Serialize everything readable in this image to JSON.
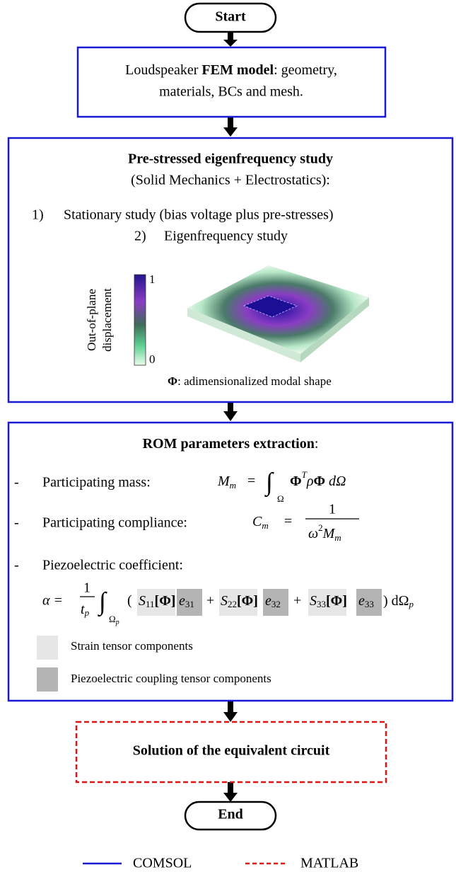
{
  "start": {
    "label": "Start"
  },
  "fem_box": {
    "line1": [
      "Loudspeaker ",
      "FEM model",
      ": geometry,"
    ],
    "line2": "materials, BCs and mesh."
  },
  "eigen_box": {
    "title": "Pre-stressed eigenfrequency study",
    "subtitle": "(Solid Mechanics + Electrostatics):",
    "steps": [
      {
        "number": "1)",
        "text": "Stationary study (bias voltage plus pre-stresses)"
      },
      {
        "number": "2)",
        "text": "Eigenfrequency study"
      }
    ],
    "colorbar": {
      "label": [
        "Out-of-plane",
        "displacement"
      ],
      "ticks": [
        "1",
        "0"
      ]
    },
    "caption": [
      "Φ",
      ": adimensionalized modal shape"
    ]
  },
  "rom_box": {
    "title": [
      "ROM parameters extraction",
      ":"
    ],
    "items": [
      {
        "bullet": "-",
        "label": "Participating mass:",
        "formula": [
          "M",
          "m",
          "=",
          "∫",
          "Ω",
          "Φ",
          "T",
          "ρ",
          "Φ",
          " dΩ"
        ]
      },
      {
        "bullet": "-",
        "label": "Participating compliance:",
        "formula": [
          "C",
          "m",
          "=",
          "1",
          "ω",
          "2",
          "M",
          "m"
        ]
      },
      {
        "bullet": "-",
        "label": "Piezoelectric coefficient:",
        "formula": [
          "α =",
          "1",
          "t",
          "p",
          "∫",
          "Ω",
          "p",
          "(",
          "S",
          "11",
          "[Φ]",
          "e",
          "31",
          "+",
          "S",
          "22",
          "[Φ]",
          "e",
          "32",
          "+",
          "S",
          "33",
          "[Φ]",
          "e",
          "33",
          ") dΩ",
          "p"
        ]
      }
    ],
    "legend": [
      "Strain tensor components",
      "Piezoelectric coupling tensor components"
    ]
  },
  "circuit_box": {
    "label": "Solution of the equivalent circuit"
  },
  "end": {
    "label": "End"
  },
  "legend": [
    "COMSOL",
    "MATLAB"
  ]
}
